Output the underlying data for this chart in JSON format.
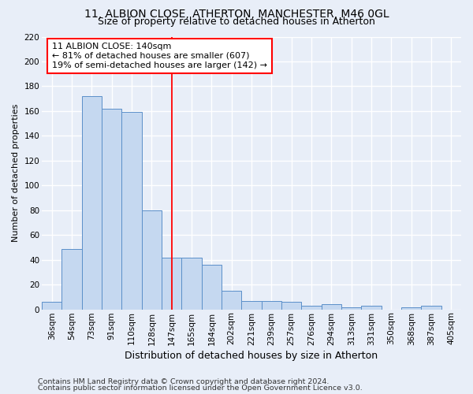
{
  "title_line1": "11, ALBION CLOSE, ATHERTON, MANCHESTER, M46 0GL",
  "title_line2": "Size of property relative to detached houses in Atherton",
  "xlabel": "Distribution of detached houses by size in Atherton",
  "ylabel": "Number of detached properties",
  "categories": [
    "36sqm",
    "54sqm",
    "73sqm",
    "91sqm",
    "110sqm",
    "128sqm",
    "147sqm",
    "165sqm",
    "184sqm",
    "202sqm",
    "221sqm",
    "239sqm",
    "257sqm",
    "276sqm",
    "294sqm",
    "313sqm",
    "331sqm",
    "350sqm",
    "368sqm",
    "387sqm",
    "405sqm"
  ],
  "values": [
    6,
    49,
    172,
    162,
    159,
    80,
    42,
    42,
    36,
    15,
    7,
    7,
    6,
    3,
    4,
    2,
    3,
    0,
    2,
    3,
    0
  ],
  "bar_color": "#c5d8f0",
  "bar_edge_color": "#5b8fc9",
  "vline_x": 6,
  "vline_color": "red",
  "annotation_line1": "11 ALBION CLOSE: 140sqm",
  "annotation_line2": "← 81% of detached houses are smaller (607)",
  "annotation_line3": "19% of semi-detached houses are larger (142) →",
  "annotation_box_color": "white",
  "annotation_box_edge": "red",
  "footer_line1": "Contains HM Land Registry data © Crown copyright and database right 2024.",
  "footer_line2": "Contains public sector information licensed under the Open Government Licence v3.0.",
  "ylim": [
    0,
    220
  ],
  "yticks": [
    0,
    20,
    40,
    60,
    80,
    100,
    120,
    140,
    160,
    180,
    200,
    220
  ],
  "fig_bg": "#e8eef8",
  "axes_bg": "#e8eef8",
  "grid_color": "#ffffff",
  "title1_fontsize": 10,
  "title2_fontsize": 9,
  "xlabel_fontsize": 9,
  "ylabel_fontsize": 8,
  "tick_fontsize": 7.5,
  "annotation_fontsize": 8,
  "footer_fontsize": 6.8
}
